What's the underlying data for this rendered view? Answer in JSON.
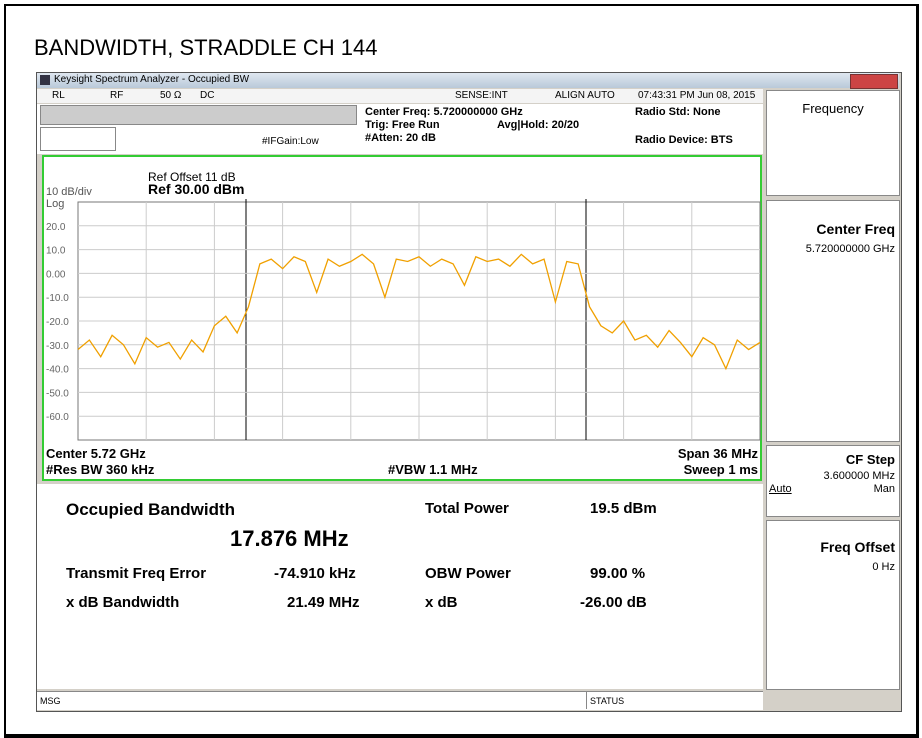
{
  "title": "BANDWIDTH, STRADDLE CH 144",
  "window_title": "Keysight Spectrum Analyzer - Occupied BW",
  "status_row": {
    "rl": "RL",
    "rf": "RF",
    "impedance": "50 Ω",
    "coupling": "DC",
    "sense": "SENSE:INT",
    "align": "ALIGN AUTO",
    "time": "07:43:31 PM Jun 08, 2015"
  },
  "settings": {
    "center_freq": "Center Freq: 5.720000000 GHz",
    "trig": "Trig: Free Run",
    "avg_hold": "Avg|Hold: 20/20",
    "atten": "#Atten: 20 dB",
    "if_gain": "#IFGain:Low",
    "radio_std": "Radio Std: None",
    "radio_device": "Radio Device: BTS"
  },
  "graph": {
    "ref_offset": "Ref Offset 11 dB",
    "scale": "10 dB/div",
    "ref_level": "Ref 30.00 dBm",
    "log": "Log",
    "center": "Center  5.72 GHz",
    "res_bw": "#Res BW  360 kHz",
    "vbw": "#VBW  1.1 MHz",
    "span": "Span 36 MHz",
    "sweep": "Sweep  1 ms",
    "ylim": [
      -70,
      30
    ],
    "xlim": [
      -18,
      18
    ],
    "yticks": [
      {
        "value": 20,
        "label": "20.0"
      },
      {
        "value": 10,
        "label": "10.0"
      },
      {
        "value": 0,
        "label": "0.00"
      },
      {
        "value": -10,
        "label": "-10.0"
      },
      {
        "value": -20,
        "label": "-20.0"
      },
      {
        "value": -30,
        "label": "-30.0"
      },
      {
        "value": -40,
        "label": "-40.0"
      },
      {
        "value": -50,
        "label": "-50.0"
      },
      {
        "value": -60,
        "label": "-60.0"
      }
    ],
    "trace_color": "#f0a000",
    "trace_x": [
      -18,
      -17.4,
      -16.8,
      -16.2,
      -15.6,
      -15,
      -14.4,
      -13.8,
      -13.2,
      -12.6,
      -12,
      -11.4,
      -10.8,
      -10.2,
      -9.6,
      -9,
      -8.4,
      -7.8,
      -7.2,
      -6.6,
      -6,
      -5.4,
      -4.8,
      -4.2,
      -3.6,
      -3,
      -2.4,
      -1.8,
      -1.2,
      -0.6,
      0,
      0.6,
      1.2,
      1.8,
      2.4,
      3,
      3.6,
      4.2,
      4.8,
      5.4,
      6,
      6.6,
      7.2,
      7.8,
      8.4,
      9,
      9.6,
      10.2,
      10.8,
      11.4,
      12,
      12.6,
      13.2,
      13.8,
      14.4,
      15,
      15.6,
      16.2,
      16.8,
      17.4,
      18
    ],
    "trace": [
      -32,
      -28,
      -35,
      -26,
      -30,
      -38,
      -27,
      -31,
      -29,
      -36,
      -28,
      -33,
      -22,
      -18,
      -25,
      -14,
      4,
      6,
      2,
      7,
      5,
      -8,
      6,
      3,
      5,
      8,
      4,
      -10,
      6,
      5,
      7,
      3,
      6,
      4,
      -5,
      7,
      5,
      6,
      3,
      8,
      4,
      6,
      -12,
      5,
      4,
      -14,
      -22,
      -25,
      -20,
      -28,
      -26,
      -31,
      -24,
      -29,
      -35,
      -27,
      -30,
      -40,
      -28,
      -32,
      -29
    ]
  },
  "results": {
    "obw_label": "Occupied Bandwidth",
    "obw_value": "17.876 MHz",
    "total_power_label": "Total Power",
    "total_power_value": "19.5 dBm",
    "tfe_label": "Transmit Freq Error",
    "tfe_value": "-74.910 kHz",
    "obw_power_label": "OBW Power",
    "obw_power_value": "99.00 %",
    "xdb_bw_label": "x dB Bandwidth",
    "xdb_bw_value": "21.49 MHz",
    "xdb_label": "x dB",
    "xdb_value": "-26.00 dB"
  },
  "softkeys": {
    "menu": "Frequency",
    "center_freq": "Center Freq",
    "center_freq_value": "5.720000000 GHz",
    "cf_step": "CF Step",
    "cf_step_value": "3.600000 MHz",
    "auto": "Auto",
    "man": "Man",
    "freq_offset": "Freq Offset",
    "freq_offset_value": "0 Hz"
  },
  "footer": {
    "msg": "MSG",
    "status": "STATUS"
  }
}
